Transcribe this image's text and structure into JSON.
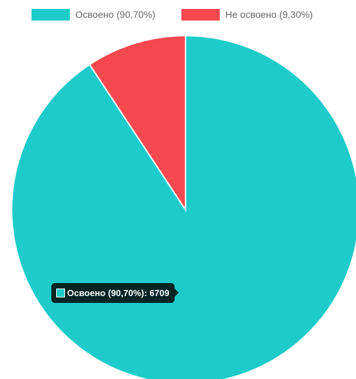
{
  "chart_data": {
    "type": "pie",
    "slices": [
      {
        "label": "Освоено (90,70%)",
        "value": 6709,
        "color": "#1ecbcb"
      },
      {
        "label": "Не освоено (9,30%)",
        "color": "#f5484f"
      }
    ],
    "start": "top",
    "direction": "clockwise",
    "legend_position": "top",
    "tooltip": {
      "label": "Освоено (90,70%)",
      "value": "6709",
      "text": "Освоено (90,70%): 6709",
      "color": "#1ecbcb"
    }
  },
  "colors": {
    "slice_border": "#ffffff",
    "legend_text": "#666666"
  }
}
